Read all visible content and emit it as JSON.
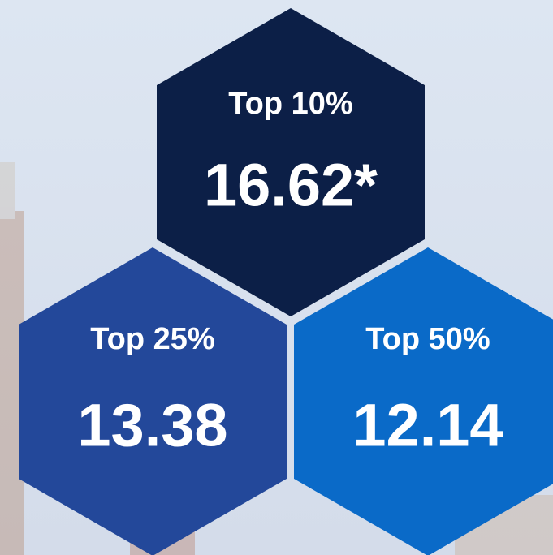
{
  "hexagons": [
    {
      "label": "Top 10%",
      "value": "16.62*"
    },
    {
      "label": "Top 25%",
      "value": "13.38"
    },
    {
      "label": "Top 50%",
      "value": "12.14"
    }
  ]
}
